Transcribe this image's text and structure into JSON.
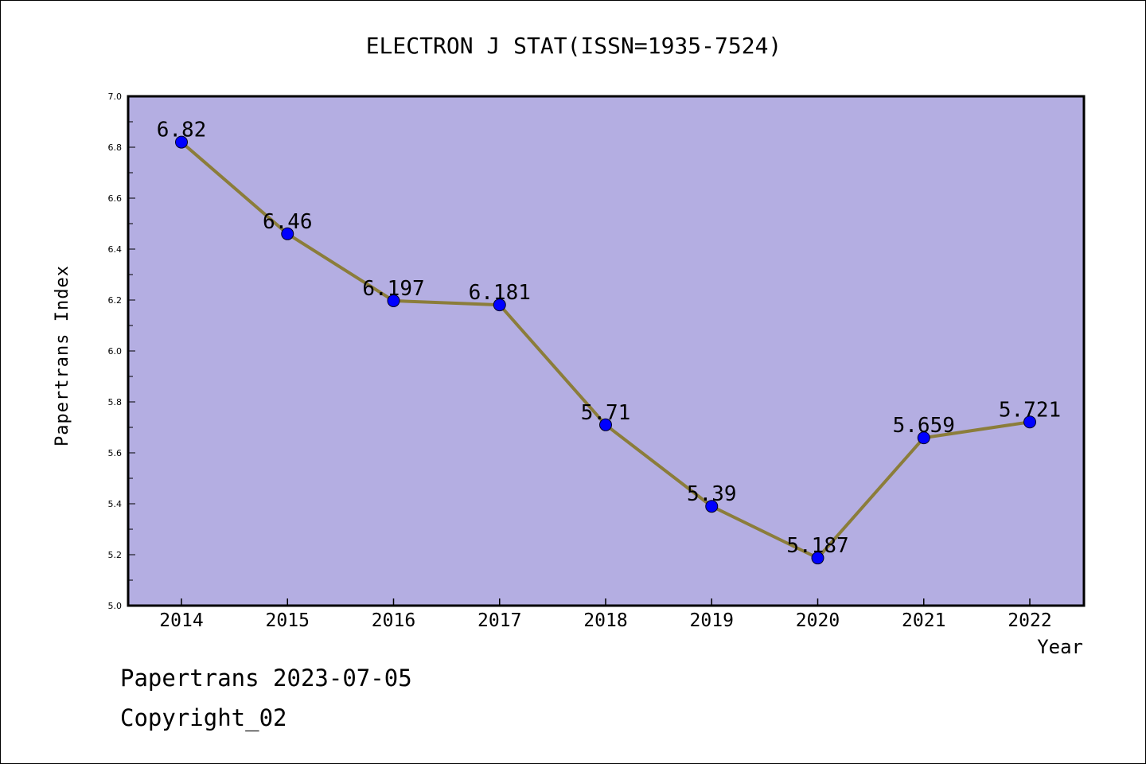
{
  "chart_data": {
    "type": "line",
    "title": "ELECTRON J STAT(ISSN=1935-7524)",
    "xlabel": "Year",
    "ylabel": "Papertrans Index",
    "categories": [
      "2014",
      "2015",
      "2016",
      "2017",
      "2018",
      "2019",
      "2020",
      "2021",
      "2022"
    ],
    "series": [
      {
        "values": [
          6.82,
          6.46,
          6.197,
          6.181,
          5.71,
          5.39,
          5.187,
          5.659,
          5.721
        ],
        "labels": [
          "6.82",
          "6.46",
          "6.197",
          "6.181",
          "5.71",
          "5.39",
          "5.187",
          "5.659",
          "5.721"
        ]
      }
    ],
    "ylim": [
      5.0,
      7.0
    ],
    "yticks": [
      "5.0",
      "5.2",
      "5.4",
      "5.6",
      "5.8",
      "6.0",
      "6.2",
      "6.4",
      "6.6",
      "6.8",
      "7.0"
    ],
    "grid": false,
    "colors": {
      "plot_background": "#b4aee2",
      "line": "#8b7d3a",
      "marker": "#0000ff"
    }
  },
  "footer": {
    "source": "Papertrans 2023-07-05",
    "copyright": "Copyright_02"
  }
}
